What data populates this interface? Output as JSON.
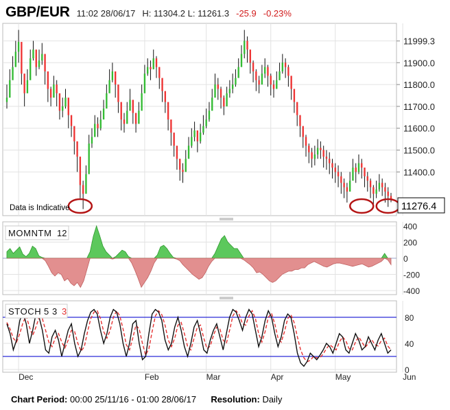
{
  "header": {
    "symbol": "GBP/EUR",
    "datetime": "11:02 28/06/17",
    "high_low": "H: 11304.2 L: 11261.3",
    "change": "-25.9",
    "change_pct": "-0.23%"
  },
  "footer": {
    "period_label": "Chart Period:",
    "period_value": "00:00 25/11/16 - 01:00 28/06/17",
    "resolution_label": "Resolution:",
    "resolution_value": "Daily"
  },
  "colors": {
    "up": "#33bb33",
    "down": "#ee3333",
    "wick": "#111111",
    "momentum_pos": "#5cc85c",
    "momentum_neg": "#e28f8f",
    "stoch_k": "#111111",
    "stoch_d": "#e53030",
    "band": "#2a2ad6",
    "grid": "#e2e2e2",
    "circle": "#b41414"
  },
  "chart_data": [
    {
      "type": "candlestick",
      "title": "GBP/EUR",
      "note": "Data is Indicative",
      "last_value_label": "11276.4",
      "ylim": [
        11200,
        12080
      ],
      "yticks": [
        11400.0,
        11500.0,
        11600.0,
        11700.0,
        11800.0,
        11900.0,
        11999.3
      ],
      "ytick_labels": [
        "11400.0",
        "11500.0",
        "11600.0",
        "11700.0",
        "11800.0",
        "11900.0",
        "11999.3"
      ],
      "xtick_labels": [
        "Dec",
        "Feb",
        "Mar",
        "Apr",
        "May",
        "Jun"
      ],
      "xtick_index": [
        4,
        47,
        68,
        90,
        112,
        135
      ],
      "close": [
        11740,
        11820,
        11880,
        11950,
        11995,
        11850,
        11760,
        11820,
        11920,
        11960,
        11880,
        11910,
        11940,
        11860,
        11780,
        11740,
        11800,
        11760,
        11680,
        11700,
        11740,
        11660,
        11610,
        11540,
        11470,
        11340,
        11300,
        11390,
        11530,
        11560,
        11620,
        11600,
        11640,
        11690,
        11760,
        11820,
        11860,
        11800,
        11720,
        11640,
        11620,
        11680,
        11730,
        11670,
        11620,
        11680,
        11760,
        11850,
        11880,
        11870,
        11920,
        11880,
        11830,
        11770,
        11720,
        11640,
        11580,
        11520,
        11460,
        11410,
        11400,
        11460,
        11520,
        11560,
        11590,
        11540,
        11580,
        11610,
        11640,
        11680,
        11740,
        11800,
        11780,
        11740,
        11700,
        11760,
        11780,
        11800,
        11830,
        11880,
        11940,
        12000,
        11960,
        11900,
        11860,
        11820,
        11800,
        11850,
        11880,
        11840,
        11800,
        11780,
        11820,
        11860,
        11900,
        11880,
        11840,
        11780,
        11720,
        11660,
        11610,
        11560,
        11520,
        11490,
        11460,
        11480,
        11510,
        11500,
        11470,
        11460,
        11440,
        11420,
        11400,
        11380,
        11350,
        11330,
        11310,
        11360,
        11420,
        11400,
        11440,
        11420,
        11380,
        11360,
        11330,
        11300,
        11320,
        11350,
        11330,
        11310,
        11290,
        11276.4
      ],
      "high": [
        11800,
        11870,
        11930,
        12000,
        12050,
        11980,
        11820,
        11870,
        11960,
        12000,
        11940,
        11960,
        11990,
        11920,
        11830,
        11790,
        11840,
        11820,
        11740,
        11740,
        11780,
        11720,
        11660,
        11600,
        11520,
        11420,
        11360,
        11430,
        11570,
        11600,
        11660,
        11650,
        11680,
        11730,
        11800,
        11870,
        11900,
        11860,
        11770,
        11690,
        11670,
        11720,
        11780,
        11720,
        11670,
        11720,
        11800,
        11890,
        11920,
        11910,
        11960,
        11930,
        11880,
        11820,
        11770,
        11700,
        11640,
        11570,
        11510,
        11460,
        11440,
        11500,
        11560,
        11600,
        11630,
        11580,
        11620,
        11660,
        11690,
        11720,
        11780,
        11850,
        11830,
        11790,
        11750,
        11790,
        11820,
        11850,
        11870,
        11920,
        11980,
        12050,
        12020,
        11950,
        11910,
        11870,
        11840,
        11890,
        11920,
        11890,
        11850,
        11820,
        11860,
        11900,
        11940,
        11920,
        11890,
        11820,
        11770,
        11710,
        11660,
        11610,
        11570,
        11530,
        11510,
        11520,
        11550,
        11540,
        11520,
        11500,
        11490,
        11460,
        11440,
        11430,
        11400,
        11370,
        11350,
        11400,
        11460,
        11440,
        11480,
        11460,
        11420,
        11400,
        11370,
        11340,
        11360,
        11390,
        11370,
        11350,
        11330,
        11304.2
      ],
      "low": [
        11690,
        11780,
        11840,
        11900,
        11900,
        11800,
        11700,
        11770,
        11880,
        11910,
        11840,
        11870,
        11890,
        11800,
        11720,
        11700,
        11750,
        11700,
        11640,
        11650,
        11690,
        11600,
        11560,
        11480,
        11400,
        11280,
        11230,
        11340,
        11480,
        11510,
        11570,
        11560,
        11590,
        11640,
        11700,
        11780,
        11810,
        11740,
        11670,
        11590,
        11580,
        11630,
        11680,
        11620,
        11580,
        11630,
        11720,
        11800,
        11840,
        11820,
        11870,
        11830,
        11780,
        11720,
        11670,
        11590,
        11520,
        11470,
        11410,
        11360,
        11350,
        11410,
        11470,
        11510,
        11540,
        11490,
        11530,
        11570,
        11600,
        11630,
        11700,
        11760,
        11730,
        11690,
        11660,
        11720,
        11740,
        11760,
        11790,
        11840,
        11890,
        11920,
        11900,
        11850,
        11810,
        11770,
        11760,
        11800,
        11830,
        11790,
        11750,
        11740,
        11780,
        11820,
        11850,
        11830,
        11790,
        11730,
        11670,
        11610,
        11560,
        11510,
        11470,
        11440,
        11420,
        11430,
        11460,
        11460,
        11420,
        11410,
        11390,
        11370,
        11350,
        11330,
        11300,
        11280,
        11260,
        11320,
        11370,
        11350,
        11390,
        11370,
        11330,
        11310,
        11280,
        11250,
        11280,
        11310,
        11290,
        11260,
        11240,
        11261.3
      ],
      "circles_at_index": [
        25,
        121,
        130
      ]
    },
    {
      "type": "area",
      "title": "MOMNTM",
      "param": "12",
      "ylim": [
        -450,
        450
      ],
      "yticks": [
        400,
        200,
        0,
        -200,
        -400
      ],
      "ytick_labels": [
        "400",
        "200",
        "0",
        "-200",
        "-400"
      ],
      "values": [
        80,
        120,
        60,
        100,
        140,
        50,
        20,
        60,
        150,
        120,
        30,
        10,
        -30,
        -100,
        -180,
        -220,
        -180,
        -200,
        -280,
        -250,
        -310,
        -340,
        -300,
        -360,
        -280,
        -140,
        80,
        270,
        400,
        280,
        150,
        80,
        40,
        -10,
        20,
        60,
        100,
        80,
        20,
        -60,
        -150,
        -250,
        -360,
        -300,
        -240,
        -160,
        -60,
        40,
        140,
        160,
        120,
        60,
        10,
        -10,
        -30,
        -80,
        -120,
        -160,
        -200,
        -230,
        -260,
        -240,
        -180,
        -100,
        -40,
        60,
        150,
        240,
        280,
        200,
        160,
        120,
        120,
        60,
        -20,
        -50,
        -80,
        -120,
        -180,
        -170,
        -200,
        -240,
        -280,
        -300,
        -280,
        -240,
        -200,
        -180,
        -160,
        -160,
        -140,
        -140,
        -120,
        -120,
        -80,
        -60,
        -40,
        -60,
        -80,
        -100,
        -110,
        -90,
        -70,
        -60,
        -60,
        -70,
        -80,
        -90,
        -100,
        -90,
        -80,
        -70,
        -90,
        -110,
        -100,
        -80,
        -60,
        -40,
        60,
        -20,
        -80
      ],
      "xtick_index": [
        4,
        47,
        68,
        90,
        112,
        135
      ]
    },
    {
      "type": "line",
      "title": "STOCH",
      "params": [
        "5",
        "3",
        "3"
      ],
      "ylim": [
        0,
        100
      ],
      "yticks": [
        80,
        40,
        0
      ],
      "ytick_labels": [
        "80",
        "40",
        "0"
      ],
      "bands": [
        80,
        20
      ],
      "series": [
        {
          "values": [
            70,
            55,
            30,
            45,
            75,
            88,
            70,
            40,
            60,
            85,
            80,
            60,
            30,
            25,
            50,
            60,
            45,
            20,
            40,
            60,
            70,
            40,
            20,
            30,
            55,
            75,
            88,
            92,
            85,
            60,
            40,
            55,
            80,
            92,
            88,
            70,
            40,
            20,
            40,
            70,
            75,
            40,
            15,
            20,
            55,
            85,
            92,
            88,
            75,
            45,
            30,
            40,
            65,
            80,
            60,
            35,
            20,
            40,
            65,
            75,
            55,
            30,
            25,
            45,
            60,
            70,
            50,
            30,
            55,
            80,
            92,
            88,
            75,
            60,
            80,
            92,
            85,
            60,
            35,
            50,
            75,
            90,
            80,
            55,
            35,
            50,
            75,
            85,
            80,
            55,
            25,
            10,
            5,
            12,
            25,
            20,
            15,
            22,
            30,
            40,
            35,
            25,
            40,
            55,
            50,
            30,
            25,
            40,
            55,
            45,
            30,
            35,
            50,
            40,
            30,
            45,
            55,
            40,
            25,
            30
          ]
        },
        {
          "values": [
            72,
            62,
            48,
            42,
            55,
            72,
            82,
            65,
            52,
            65,
            80,
            78,
            60,
            42,
            35,
            48,
            55,
            42,
            33,
            45,
            60,
            58,
            40,
            28,
            35,
            58,
            78,
            88,
            90,
            78,
            58,
            48,
            60,
            80,
            90,
            82,
            62,
            38,
            30,
            48,
            68,
            62,
            40,
            22,
            32,
            58,
            82,
            90,
            84,
            68,
            45,
            35,
            48,
            68,
            72,
            55,
            35,
            30,
            48,
            65,
            68,
            48,
            32,
            36,
            52,
            65,
            62,
            45,
            40,
            60,
            82,
            90,
            84,
            70,
            68,
            82,
            90,
            78,
            55,
            42,
            58,
            80,
            86,
            70,
            48,
            42,
            58,
            78,
            84,
            72,
            50,
            30,
            18,
            12,
            14,
            20,
            18,
            18,
            24,
            32,
            38,
            34,
            30,
            42,
            50,
            44,
            32,
            30,
            42,
            50,
            42,
            34,
            40,
            46,
            38,
            36,
            44,
            48,
            36,
            30
          ]
        }
      ],
      "xtick_index": [
        4,
        47,
        68,
        90,
        112,
        135
      ]
    }
  ]
}
